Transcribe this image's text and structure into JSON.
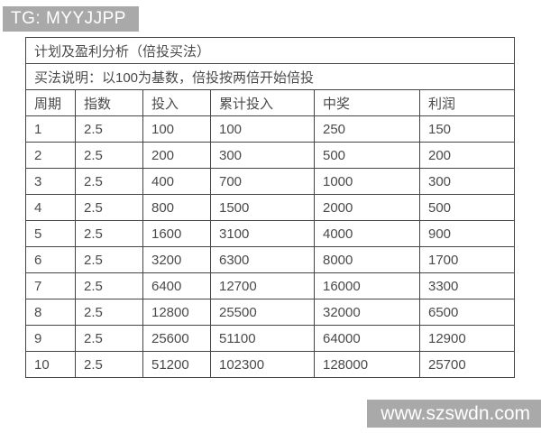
{
  "badges": {
    "telegram": "TG: MYYJJPP",
    "website": "www.szswdn.com"
  },
  "table": {
    "title": "计划及盈利分析（倍投买法）",
    "note": "买法说明：以100为基数，倍投按两倍开始倍投",
    "columns": [
      "周期",
      "指数",
      "投入",
      "累计投入",
      "中奖",
      "利润"
    ],
    "rows": [
      [
        "1",
        "2.5",
        "100",
        "100",
        "250",
        "150"
      ],
      [
        "2",
        "2.5",
        "200",
        "300",
        "500",
        "200"
      ],
      [
        "3",
        "2.5",
        "400",
        "700",
        "1000",
        "300"
      ],
      [
        "4",
        "2.5",
        "800",
        "1500",
        "2000",
        "500"
      ],
      [
        "5",
        "2.5",
        "1600",
        "3100",
        "4000",
        "900"
      ],
      [
        "6",
        "2.5",
        "3200",
        "6300",
        "8000",
        "1700"
      ],
      [
        "7",
        "2.5",
        "6400",
        "12700",
        "16000",
        "3300"
      ],
      [
        "8",
        "2.5",
        "12800",
        "25500",
        "32000",
        "6500"
      ],
      [
        "9",
        "2.5",
        "25600",
        "51100",
        "64000",
        "12900"
      ],
      [
        "10",
        "2.5",
        "51200",
        "102300",
        "128000",
        "25700"
      ]
    ]
  },
  "colors": {
    "badge_bg": "#a9a9a9",
    "border": "#454545",
    "text": "#4a4a4a"
  }
}
